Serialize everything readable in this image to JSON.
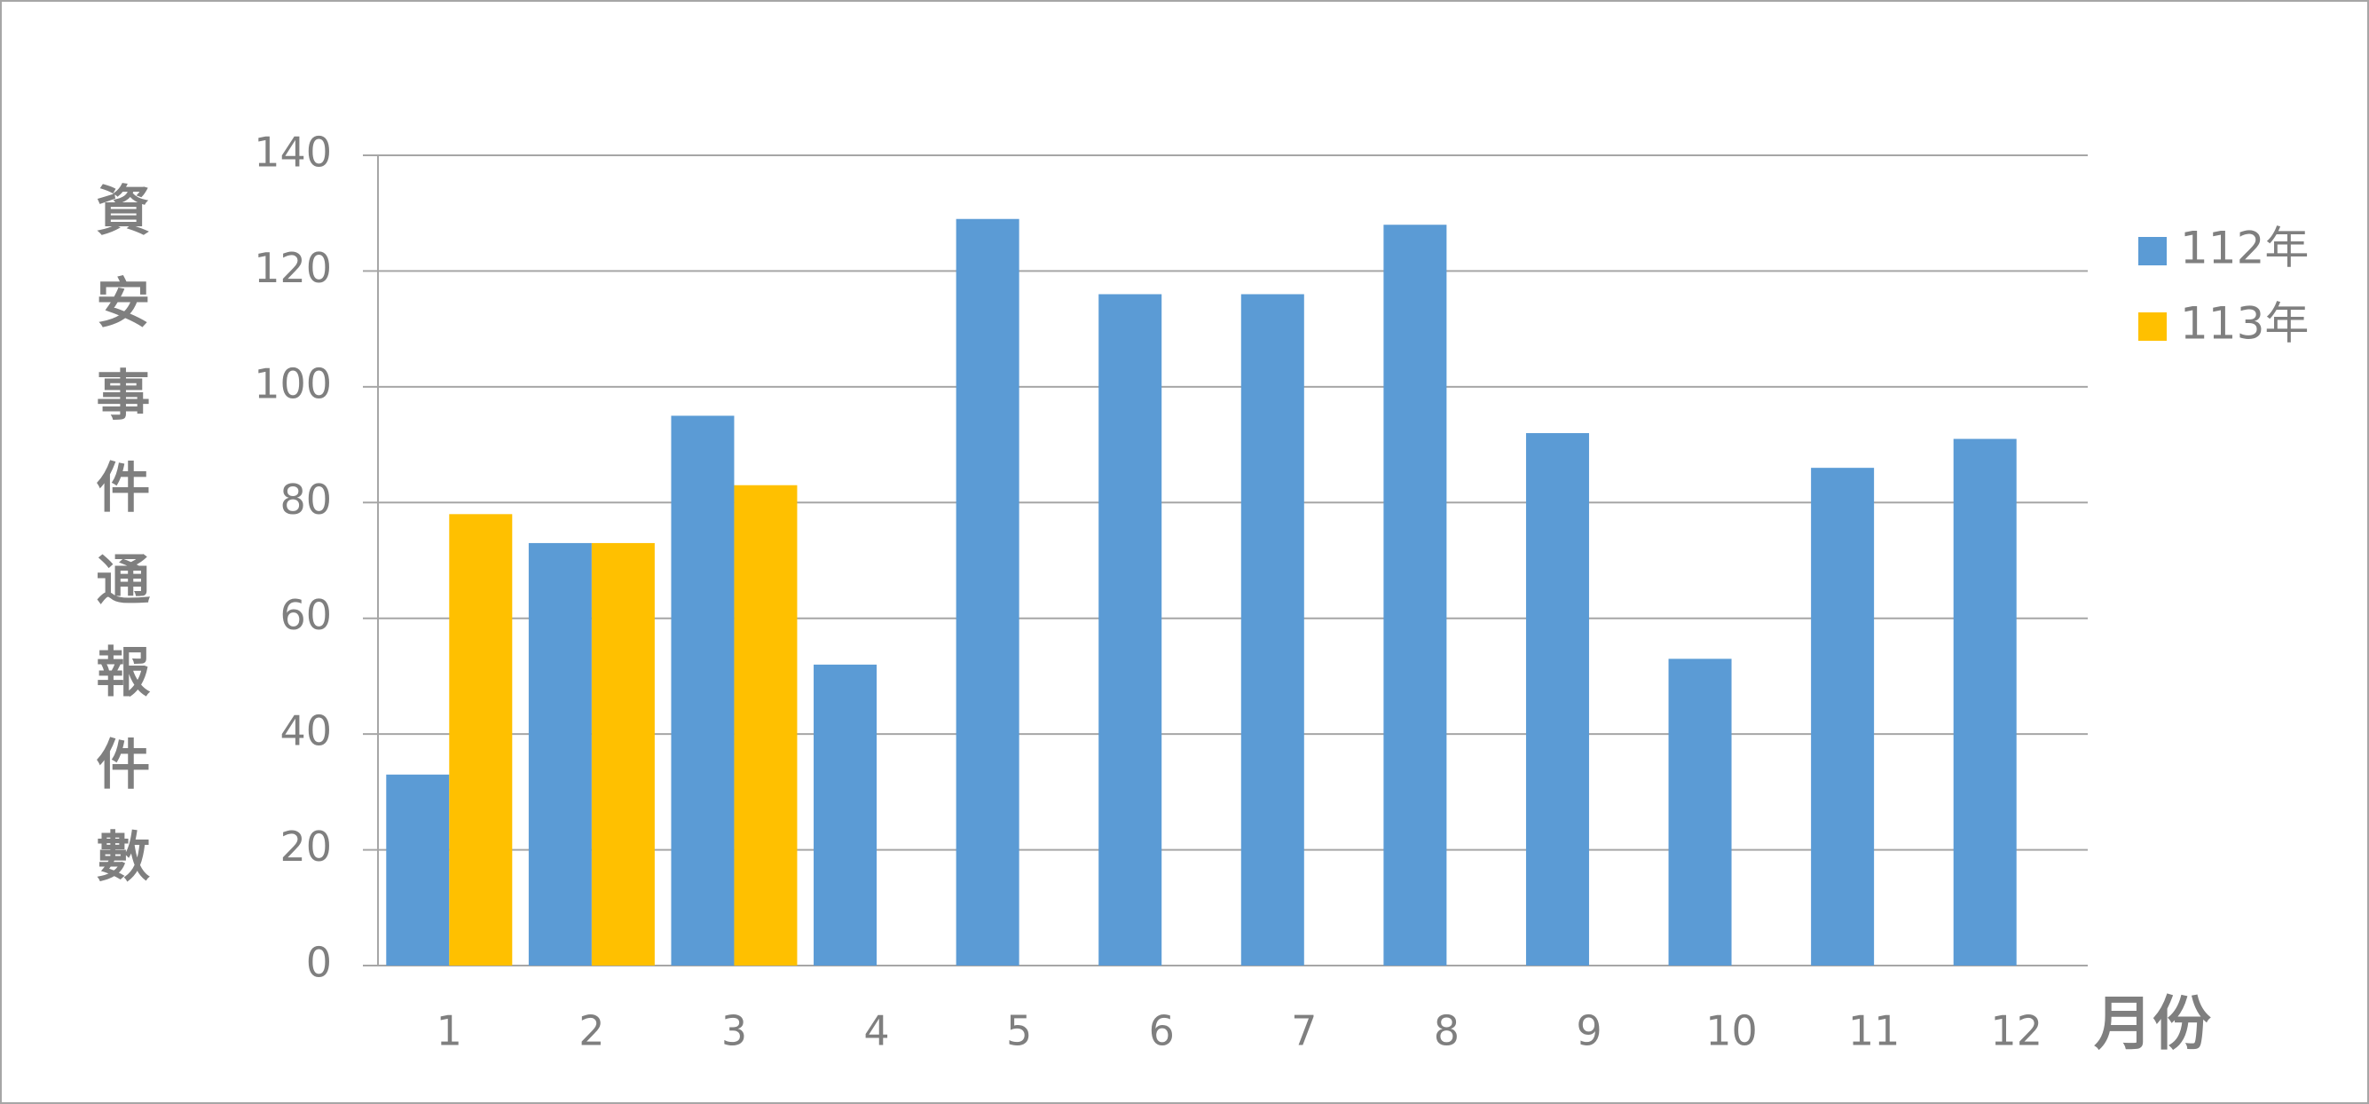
{
  "chart_data": {
    "type": "bar",
    "y_label": "資安事件通報件數",
    "x_label": "月份",
    "categories": [
      "1",
      "2",
      "3",
      "4",
      "5",
      "6",
      "7",
      "8",
      "9",
      "10",
      "11",
      "12"
    ],
    "series": [
      {
        "name": "112年",
        "color": "#5b9bd5",
        "values": [
          33,
          73,
          95,
          52,
          129,
          116,
          116,
          128,
          92,
          53,
          86,
          91
        ]
      },
      {
        "name": "113年",
        "color": "#ffc000",
        "values": [
          78,
          73,
          83,
          null,
          null,
          null,
          null,
          null,
          null,
          null,
          null,
          null
        ]
      }
    ],
    "ylim": [
      0,
      140
    ],
    "yticks": [
      0,
      20,
      40,
      60,
      80,
      100,
      120,
      140
    ],
    "grid": true,
    "legend": "right"
  }
}
